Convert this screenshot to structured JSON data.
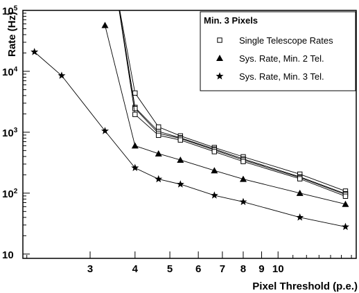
{
  "chart_data": {
    "type": "line",
    "xlabel": "Pixel Threshold (p.e.)",
    "ylabel": "Rate (Hz)",
    "xscale": "log",
    "yscale": "log",
    "xlim": [
      1.95,
      16.5
    ],
    "ylim": [
      8.5,
      100000
    ],
    "grid": false,
    "x_ticks": [
      {
        "value": 3,
        "label": "3"
      },
      {
        "value": 4,
        "label": "4"
      },
      {
        "value": 5,
        "label": "5"
      },
      {
        "value": 6,
        "label": "6"
      },
      {
        "value": 7,
        "label": "7"
      },
      {
        "value": 8,
        "label": "8"
      },
      {
        "value": 9,
        "label": "9"
      },
      {
        "value": 10,
        "label": "10"
      }
    ],
    "y_ticks": [
      {
        "value": 10,
        "label": "10",
        "exp": ""
      },
      {
        "value": 100,
        "label": "10",
        "exp": "2"
      },
      {
        "value": 1000,
        "label": "10",
        "exp": "3"
      },
      {
        "value": 10000,
        "label": "10",
        "exp": "4"
      },
      {
        "value": 100000,
        "label": "10",
        "exp": "5"
      }
    ],
    "legend": {
      "title": "Min. 3 Pixels",
      "position": "top-right",
      "entries": [
        {
          "marker": "open-square",
          "label": "Single Telescope Rates"
        },
        {
          "marker": "filled-triangle",
          "label": "Sys. Rate, Min. 2 Tel."
        },
        {
          "marker": "filled-star",
          "label": "Sys. Rate, Min. 3 Tel."
        }
      ]
    },
    "series": [
      {
        "marker": "open-square",
        "x": [
          3.55,
          4.0,
          4.65,
          5.35,
          6.65,
          8.0,
          11.5,
          15.4
        ],
        "y": [
          200000,
          4400,
          1220,
          870,
          560,
          395,
          205,
          108
        ]
      },
      {
        "marker": "open-square",
        "x": [
          3.55,
          4.0,
          4.65,
          5.35,
          6.65,
          8.0,
          11.5,
          15.4
        ],
        "y": [
          200000,
          2550,
          1030,
          810,
          530,
          365,
          185,
          98
        ]
      },
      {
        "marker": "open-square",
        "x": [
          3.55,
          4.0,
          4.65,
          5.35,
          6.65,
          8.0,
          11.5,
          15.4
        ],
        "y": [
          200000,
          2450,
          960,
          790,
          510,
          350,
          180,
          95
        ]
      },
      {
        "marker": "open-square",
        "x": [
          3.55,
          4.0,
          4.65,
          5.35,
          6.65,
          8.0,
          11.5,
          15.4
        ],
        "y": [
          200000,
          1960,
          890,
          745,
          480,
          330,
          172,
          89
        ]
      },
      {
        "marker": "filled-triangle",
        "x": [
          3.3,
          4.0,
          4.65,
          5.35,
          6.65,
          8.0,
          11.5,
          15.4
        ],
        "y": [
          57000,
          600,
          445,
          350,
          235,
          170,
          100,
          66
        ]
      },
      {
        "marker": "filled-star",
        "x": [
          2.1,
          2.5,
          3.3,
          4.0,
          4.65,
          5.35,
          6.65,
          8.0,
          11.5,
          15.4
        ],
        "y": [
          20800,
          8500,
          1050,
          260,
          170,
          140,
          92,
          72,
          40,
          28
        ]
      }
    ]
  }
}
